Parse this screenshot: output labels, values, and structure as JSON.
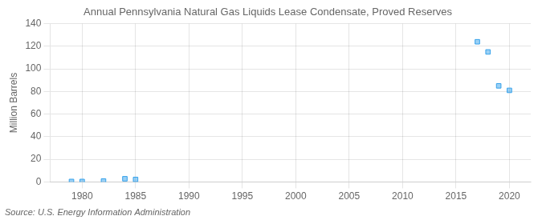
{
  "chart_data": {
    "type": "scatter",
    "title": "Annual Pennsylvania Natural Gas Liquids Lease Condensate, Proved Reserves",
    "ylabel": "Million Barrels",
    "annotation": "Source: U.S. Energy Information Administration",
    "x": [
      1979,
      1980,
      1982,
      1984,
      1985,
      2017,
      2018,
      2019,
      2020
    ],
    "values": [
      0.4,
      0.4,
      0.8,
      2.8,
      2.2,
      124.0,
      115.0,
      85.0,
      81.0
    ],
    "marker": "square",
    "xlim": [
      1977,
      2022
    ],
    "xticks": [
      1980,
      1985,
      1990,
      1995,
      2000,
      2005,
      2010,
      2015,
      2020
    ],
    "ylim": [
      0,
      140
    ],
    "yticks": [
      0,
      20,
      40,
      60,
      80,
      100,
      120,
      140
    ],
    "grid": true
  }
}
